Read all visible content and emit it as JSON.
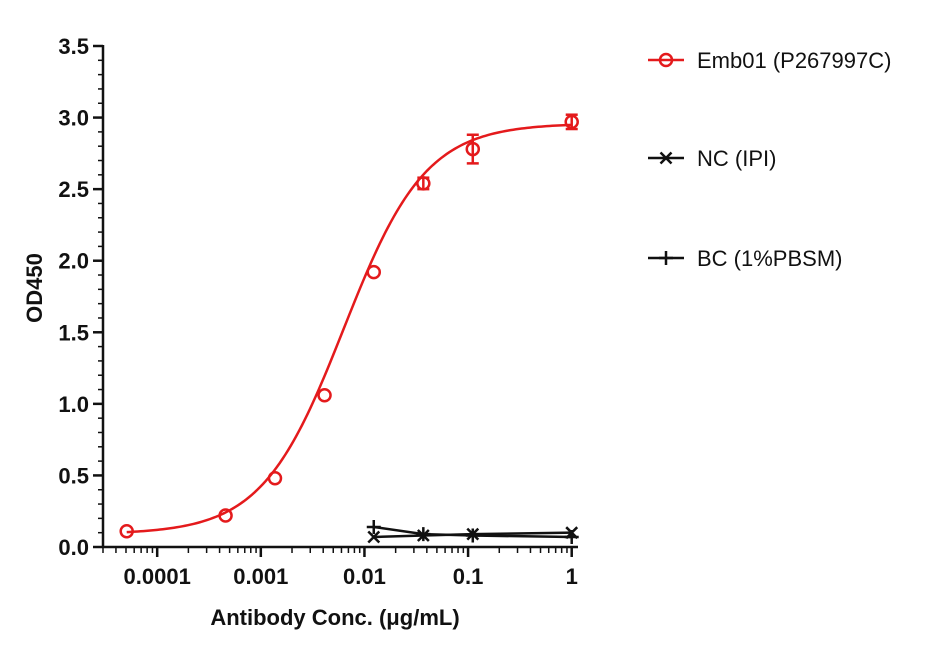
{
  "chart_data": {
    "type": "scatter",
    "xlabel": "Antibody Conc. (μg/mL)",
    "ylabel": "OD450",
    "x_scale": "log",
    "xlim": [
      3e-05,
      1.15
    ],
    "ylim": [
      0,
      3.5
    ],
    "x_ticks": [
      0.0001,
      0.001,
      0.01,
      0.1,
      1
    ],
    "x_tick_labels": [
      "0.0001",
      "0.001",
      "0.01",
      "0.1",
      "1"
    ],
    "y_ticks": [
      0.0,
      0.5,
      1.0,
      1.5,
      2.0,
      2.5,
      3.0,
      3.5
    ],
    "y_tick_labels": [
      "0.0",
      "0.5",
      "1.0",
      "1.5",
      "2.0",
      "2.5",
      "3.0",
      "3.5"
    ],
    "legend_position": "right",
    "grid": false,
    "series": [
      {
        "name": "Emb01 (P267997C)",
        "color": "#e41a1c",
        "marker": "circle",
        "fit": "sigmoid",
        "x": [
          5.08e-05,
          0.000457,
          0.00137,
          0.00412,
          0.0123,
          0.037,
          0.111,
          1.0
        ],
        "y": [
          0.11,
          0.22,
          0.48,
          1.06,
          1.92,
          2.54,
          2.78,
          2.97
        ],
        "error": [
          0.0,
          0.0,
          0.0,
          0.0,
          0.0,
          0.04,
          0.1,
          0.05
        ]
      },
      {
        "name": "NC (IPI)",
        "color": "#111111",
        "marker": "x",
        "fit": "line",
        "x": [
          0.0123,
          0.037,
          0.111,
          1.0
        ],
        "y": [
          0.07,
          0.08,
          0.09,
          0.1
        ],
        "error": []
      },
      {
        "name": "BC (1%PBSM)",
        "color": "#111111",
        "marker": "plus",
        "fit": "line",
        "x": [
          0.0123,
          0.037,
          0.111,
          1.0
        ],
        "y": [
          0.14,
          0.09,
          0.08,
          0.07
        ],
        "error": []
      }
    ]
  }
}
